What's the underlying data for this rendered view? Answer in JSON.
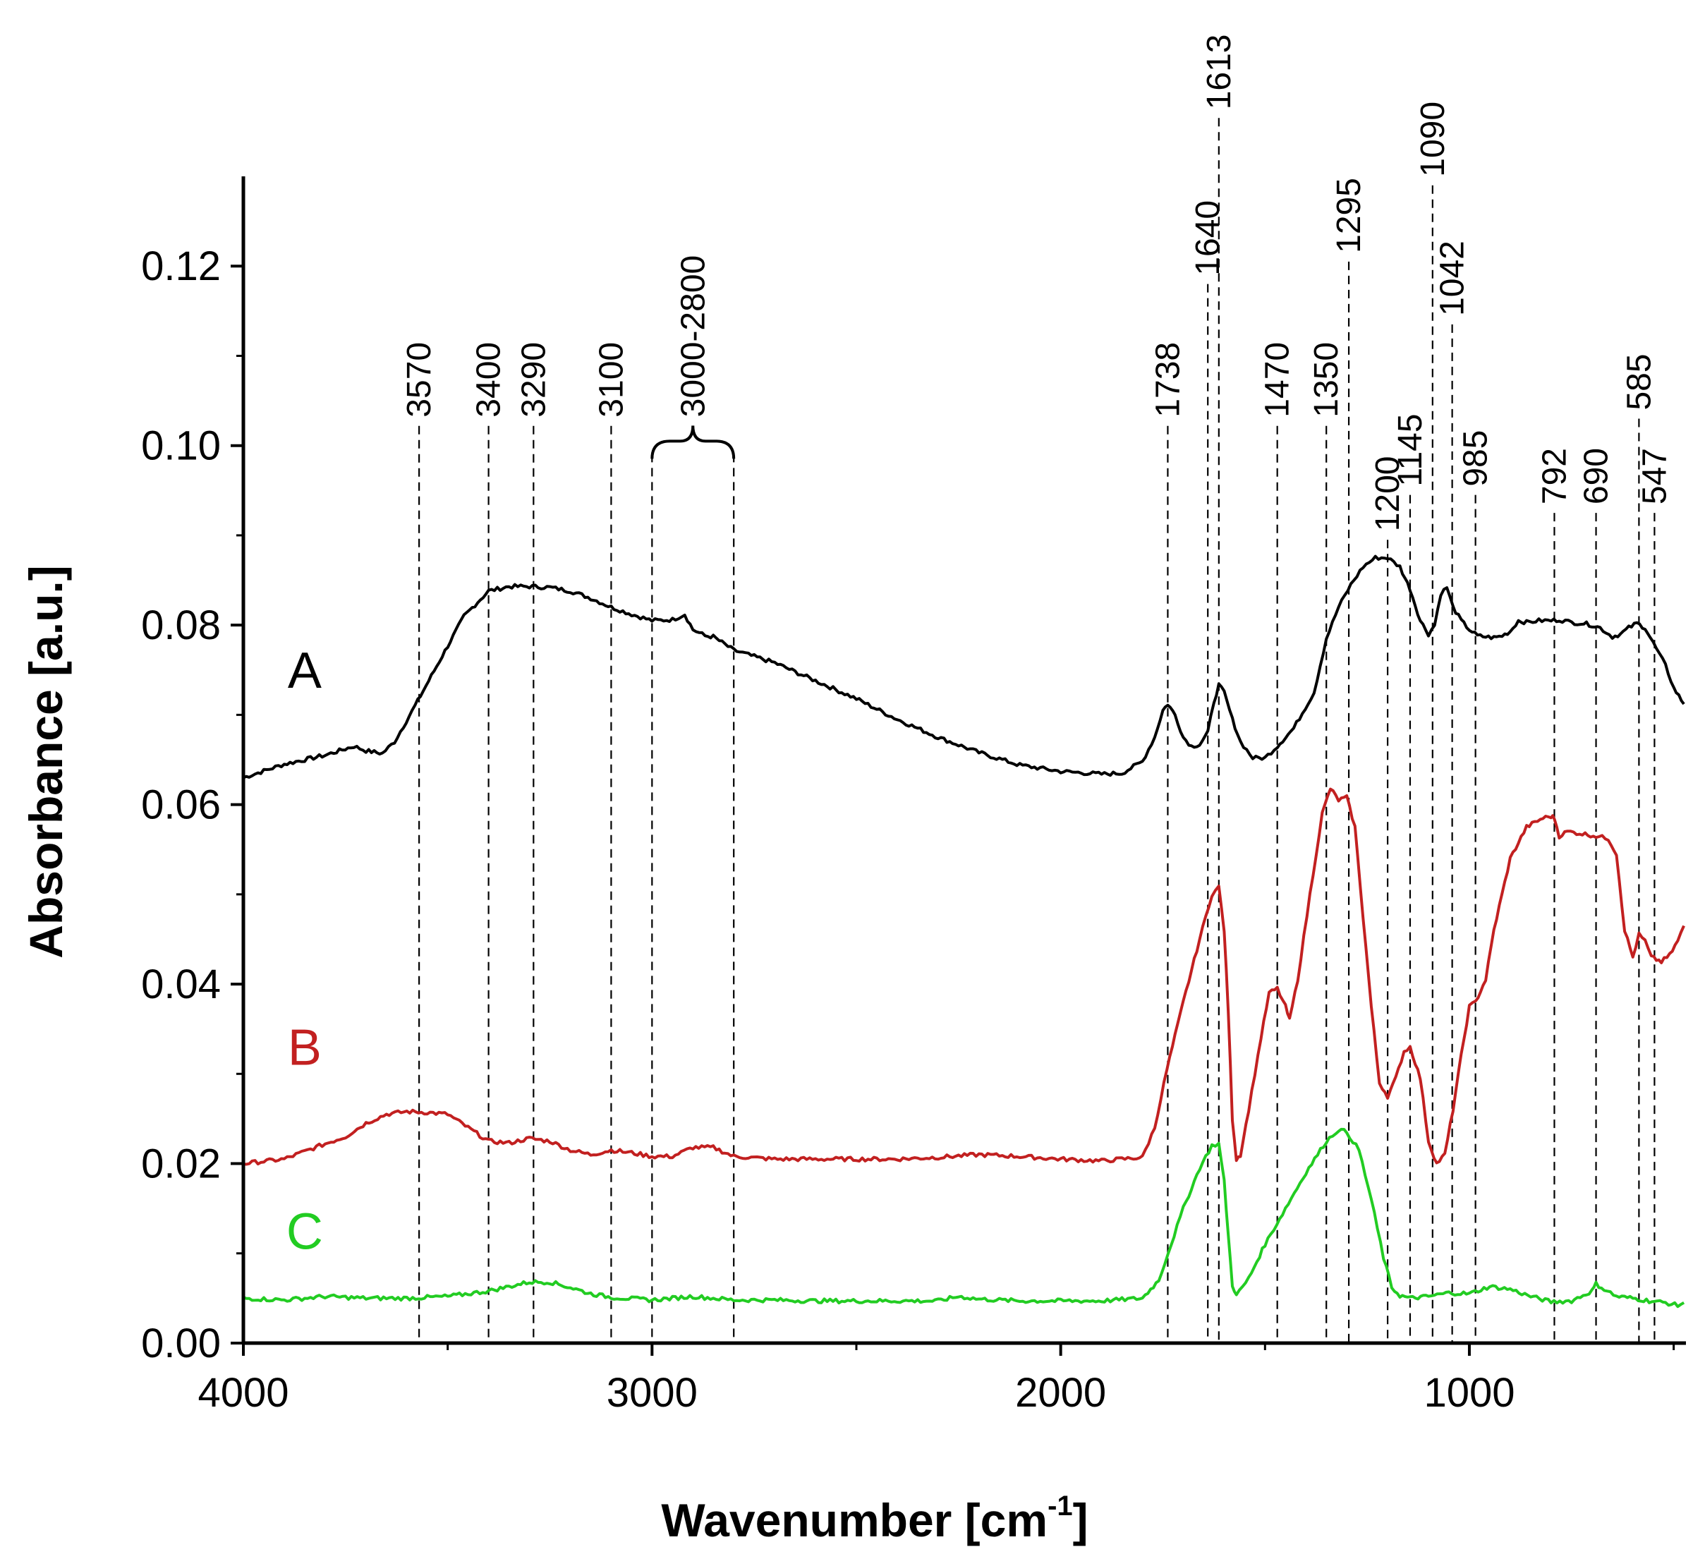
{
  "chart_data": {
    "type": "line",
    "title": "",
    "xlabel": "Wavenumber [cm",
    "xlabel_sup": "-1",
    "xlabel_end": "]",
    "ylabel": "Absorbance [a.u.]",
    "xlim": [
      4000,
      470
    ],
    "ylim": [
      0.0,
      0.13
    ],
    "x_ticks": [
      4000,
      3000,
      2000,
      1000
    ],
    "x_tick_labels": [
      "4000",
      "3000",
      "2000",
      "1000"
    ],
    "y_ticks": [
      0.0,
      0.02,
      0.04,
      0.06,
      0.08,
      0.1,
      0.12
    ],
    "y_tick_labels": [
      "0.00",
      "0.02",
      "0.04",
      "0.06",
      "0.08",
      "0.10",
      "0.12"
    ],
    "series": [
      {
        "name": "A",
        "color": "#000000",
        "label_pos": [
          3850,
          0.073
        ],
        "points": [
          [
            4000,
            0.063
          ],
          [
            3900,
            0.0645
          ],
          [
            3800,
            0.0655
          ],
          [
            3730,
            0.0665
          ],
          [
            3700,
            0.066
          ],
          [
            3660,
            0.0657
          ],
          [
            3630,
            0.067
          ],
          [
            3580,
            0.071
          ],
          [
            3520,
            0.076
          ],
          [
            3460,
            0.081
          ],
          [
            3400,
            0.0838
          ],
          [
            3350,
            0.0843
          ],
          [
            3300,
            0.0843
          ],
          [
            3250,
            0.0842
          ],
          [
            3200,
            0.0838
          ],
          [
            3150,
            0.083
          ],
          [
            3100,
            0.082
          ],
          [
            3050,
            0.0812
          ],
          [
            3000,
            0.0805
          ],
          [
            2950,
            0.0806
          ],
          [
            2920,
            0.0812
          ],
          [
            2900,
            0.0795
          ],
          [
            2870,
            0.0788
          ],
          [
            2850,
            0.0787
          ],
          [
            2800,
            0.0772
          ],
          [
            2700,
            0.0758
          ],
          [
            2600,
            0.0738
          ],
          [
            2500,
            0.0718
          ],
          [
            2400,
            0.0695
          ],
          [
            2300,
            0.0675
          ],
          [
            2200,
            0.0658
          ],
          [
            2100,
            0.0644
          ],
          [
            2000,
            0.0637
          ],
          [
            1900,
            0.0634
          ],
          [
            1850,
            0.0635
          ],
          [
            1800,
            0.0648
          ],
          [
            1770,
            0.0675
          ],
          [
            1750,
            0.0705
          ],
          [
            1738,
            0.0712
          ],
          [
            1720,
            0.07
          ],
          [
            1700,
            0.0675
          ],
          [
            1680,
            0.0665
          ],
          [
            1660,
            0.0667
          ],
          [
            1640,
            0.068
          ],
          [
            1625,
            0.0715
          ],
          [
            1613,
            0.0733
          ],
          [
            1600,
            0.0725
          ],
          [
            1580,
            0.0695
          ],
          [
            1560,
            0.067
          ],
          [
            1530,
            0.0652
          ],
          [
            1500,
            0.0652
          ],
          [
            1470,
            0.0665
          ],
          [
            1430,
            0.0685
          ],
          [
            1380,
            0.0725
          ],
          [
            1350,
            0.0785
          ],
          [
            1320,
            0.082
          ],
          [
            1290,
            0.0845
          ],
          [
            1260,
            0.0865
          ],
          [
            1230,
            0.0875
          ],
          [
            1200,
            0.0875
          ],
          [
            1170,
            0.0865
          ],
          [
            1145,
            0.084
          ],
          [
            1120,
            0.0805
          ],
          [
            1100,
            0.079
          ],
          [
            1085,
            0.08
          ],
          [
            1070,
            0.0835
          ],
          [
            1055,
            0.0842
          ],
          [
            1040,
            0.082
          ],
          [
            1020,
            0.0805
          ],
          [
            1000,
            0.0795
          ],
          [
            980,
            0.0788
          ],
          [
            960,
            0.0787
          ],
          [
            940,
            0.0786
          ],
          [
            920,
            0.0788
          ],
          [
            900,
            0.0793
          ],
          [
            880,
            0.0805
          ],
          [
            860,
            0.0803
          ],
          [
            830,
            0.0805
          ],
          [
            800,
            0.0805
          ],
          [
            780,
            0.0806
          ],
          [
            750,
            0.0803
          ],
          [
            720,
            0.0802
          ],
          [
            700,
            0.08
          ],
          [
            680,
            0.0797
          ],
          [
            650,
            0.0787
          ],
          [
            630,
            0.079
          ],
          [
            610,
            0.0797
          ],
          [
            590,
            0.0802
          ],
          [
            570,
            0.0797
          ],
          [
            550,
            0.078
          ],
          [
            520,
            0.0755
          ],
          [
            500,
            0.073
          ],
          [
            475,
            0.0712
          ]
        ]
      },
      {
        "name": "B",
        "color": "#c22020",
        "label_pos": [
          3850,
          0.031
        ],
        "points": [
          [
            4000,
            0.02
          ],
          [
            3900,
            0.0205
          ],
          [
            3800,
            0.0222
          ],
          [
            3750,
            0.023
          ],
          [
            3700,
            0.0245
          ],
          [
            3650,
            0.0255
          ],
          [
            3600,
            0.0258
          ],
          [
            3550,
            0.0257
          ],
          [
            3500,
            0.0255
          ],
          [
            3450,
            0.024
          ],
          [
            3400,
            0.0225
          ],
          [
            3350,
            0.0223
          ],
          [
            3300,
            0.0228
          ],
          [
            3250,
            0.0225
          ],
          [
            3200,
            0.0215
          ],
          [
            3150,
            0.021
          ],
          [
            3100,
            0.0215
          ],
          [
            3050,
            0.0212
          ],
          [
            3000,
            0.0208
          ],
          [
            2950,
            0.0208
          ],
          [
            2900,
            0.0218
          ],
          [
            2850,
            0.0218
          ],
          [
            2800,
            0.0208
          ],
          [
            2700,
            0.0205
          ],
          [
            2600,
            0.0205
          ],
          [
            2500,
            0.0205
          ],
          [
            2400,
            0.0205
          ],
          [
            2300,
            0.0207
          ],
          [
            2200,
            0.021
          ],
          [
            2100,
            0.0208
          ],
          [
            2000,
            0.0205
          ],
          [
            1900,
            0.0203
          ],
          [
            1800,
            0.0207
          ],
          [
            1770,
            0.024
          ],
          [
            1740,
            0.0305
          ],
          [
            1700,
            0.038
          ],
          [
            1660,
            0.045
          ],
          [
            1630,
            0.05
          ],
          [
            1613,
            0.0508
          ],
          [
            1600,
            0.046
          ],
          [
            1590,
            0.037
          ],
          [
            1580,
            0.025
          ],
          [
            1570,
            0.0205
          ],
          [
            1560,
            0.021
          ],
          [
            1540,
            0.026
          ],
          [
            1510,
            0.034
          ],
          [
            1490,
            0.039
          ],
          [
            1470,
            0.0395
          ],
          [
            1450,
            0.0375
          ],
          [
            1440,
            0.036
          ],
          [
            1420,
            0.0405
          ],
          [
            1390,
            0.05
          ],
          [
            1360,
            0.059
          ],
          [
            1340,
            0.0618
          ],
          [
            1320,
            0.0605
          ],
          [
            1300,
            0.0608
          ],
          [
            1280,
            0.0575
          ],
          [
            1260,
            0.0475
          ],
          [
            1240,
            0.0375
          ],
          [
            1220,
            0.029
          ],
          [
            1200,
            0.0275
          ],
          [
            1180,
            0.0295
          ],
          [
            1160,
            0.0325
          ],
          [
            1145,
            0.033
          ],
          [
            1120,
            0.0295
          ],
          [
            1100,
            0.0225
          ],
          [
            1080,
            0.02
          ],
          [
            1060,
            0.021
          ],
          [
            1040,
            0.026
          ],
          [
            1020,
            0.032
          ],
          [
            1000,
            0.0375
          ],
          [
            985,
            0.038
          ],
          [
            960,
            0.0405
          ],
          [
            940,
            0.046
          ],
          [
            900,
            0.054
          ],
          [
            860,
            0.0575
          ],
          [
            820,
            0.0585
          ],
          [
            800,
            0.0587
          ],
          [
            792,
            0.0585
          ],
          [
            780,
            0.0565
          ],
          [
            760,
            0.057
          ],
          [
            730,
            0.0568
          ],
          [
            690,
            0.0565
          ],
          [
            660,
            0.0562
          ],
          [
            640,
            0.0545
          ],
          [
            620,
            0.046
          ],
          [
            600,
            0.043
          ],
          [
            585,
            0.0455
          ],
          [
            570,
            0.0448
          ],
          [
            555,
            0.043
          ],
          [
            530,
            0.0425
          ],
          [
            510,
            0.0432
          ],
          [
            490,
            0.0448
          ],
          [
            475,
            0.0465
          ]
        ]
      },
      {
        "name": "C",
        "color": "#22cc22",
        "label_pos": [
          3850,
          0.0105
        ],
        "points": [
          [
            4000,
            0.005
          ],
          [
            3900,
            0.0048
          ],
          [
            3800,
            0.0052
          ],
          [
            3700,
            0.005
          ],
          [
            3600,
            0.005
          ],
          [
            3500,
            0.0052
          ],
          [
            3400,
            0.0058
          ],
          [
            3350,
            0.0063
          ],
          [
            3300,
            0.0068
          ],
          [
            3250,
            0.0068
          ],
          [
            3200,
            0.0062
          ],
          [
            3150,
            0.0055
          ],
          [
            3100,
            0.0051
          ],
          [
            3000,
            0.0048
          ],
          [
            2900,
            0.0052
          ],
          [
            2800,
            0.0048
          ],
          [
            2700,
            0.0048
          ],
          [
            2600,
            0.0047
          ],
          [
            2500,
            0.0047
          ],
          [
            2400,
            0.0047
          ],
          [
            2300,
            0.0047
          ],
          [
            2250,
            0.0052
          ],
          [
            2200,
            0.0049
          ],
          [
            2100,
            0.0047
          ],
          [
            2000,
            0.0047
          ],
          [
            1900,
            0.0047
          ],
          [
            1800,
            0.005
          ],
          [
            1760,
            0.007
          ],
          [
            1730,
            0.011
          ],
          [
            1700,
            0.015
          ],
          [
            1660,
            0.0195
          ],
          [
            1630,
            0.022
          ],
          [
            1613,
            0.0222
          ],
          [
            1600,
            0.018
          ],
          [
            1590,
            0.012
          ],
          [
            1580,
            0.0065
          ],
          [
            1570,
            0.0053
          ],
          [
            1540,
            0.0072
          ],
          [
            1500,
            0.011
          ],
          [
            1450,
            0.015
          ],
          [
            1400,
            0.019
          ],
          [
            1350,
            0.0225
          ],
          [
            1320,
            0.0238
          ],
          [
            1300,
            0.0235
          ],
          [
            1270,
            0.0215
          ],
          [
            1240,
            0.016
          ],
          [
            1210,
            0.0095
          ],
          [
            1190,
            0.0062
          ],
          [
            1170,
            0.0053
          ],
          [
            1145,
            0.005
          ],
          [
            1100,
            0.0052
          ],
          [
            1050,
            0.0056
          ],
          [
            1000,
            0.0055
          ],
          [
            950,
            0.0063
          ],
          [
            900,
            0.006
          ],
          [
            850,
            0.0052
          ],
          [
            800,
            0.0046
          ],
          [
            750,
            0.0047
          ],
          [
            700,
            0.0058
          ],
          [
            690,
            0.0066
          ],
          [
            670,
            0.006
          ],
          [
            640,
            0.0052
          ],
          [
            600,
            0.005
          ],
          [
            560,
            0.0047
          ],
          [
            520,
            0.0045
          ],
          [
            490,
            0.0042
          ],
          [
            475,
            0.0045
          ]
        ]
      }
    ],
    "peak_markers": [
      {
        "label": "3570",
        "x": 3570,
        "line_top": 0.1022,
        "tier": 0
      },
      {
        "label": "3400",
        "x": 3400,
        "line_top": 0.1022,
        "tier": 0
      },
      {
        "label": "3290",
        "x": 3290,
        "line_top": 0.1022,
        "tier": 0
      },
      {
        "label": "3100",
        "x": 3100,
        "line_top": 0.1022,
        "tier": 0
      },
      {
        "label": "1738",
        "x": 1738,
        "line_top": 0.1022,
        "tier": 0
      },
      {
        "label": "1640",
        "x": 1640,
        "line_top": 0.118,
        "tier": 1
      },
      {
        "label": "1613",
        "x": 1613,
        "line_top": 0.1365,
        "tier": 2
      },
      {
        "label": "1470",
        "x": 1470,
        "line_top": 0.1022,
        "tier": 0
      },
      {
        "label": "1350",
        "x": 1350,
        "line_top": 0.1022,
        "tier": 0
      },
      {
        "label": "1295",
        "x": 1295,
        "line_top": 0.1205,
        "tier": 1
      },
      {
        "label": "1200",
        "x": 1200,
        "line_top": 0.0895,
        "tier": -1
      },
      {
        "label": "1145",
        "x": 1145,
        "line_top": 0.0945,
        "tier": -1
      },
      {
        "label": "1090",
        "x": 1090,
        "line_top": 0.129,
        "tier": 2
      },
      {
        "label": "1042",
        "x": 1042,
        "line_top": 0.1135,
        "tier": 1
      },
      {
        "label": "985",
        "x": 985,
        "line_top": 0.0945,
        "tier": -1
      },
      {
        "label": "792",
        "x": 792,
        "line_top": 0.0925,
        "tier": -1
      },
      {
        "label": "690",
        "x": 690,
        "line_top": 0.0925,
        "tier": -1
      },
      {
        "label": "585",
        "x": 585,
        "line_top": 0.103,
        "tier": 0
      },
      {
        "label": "547",
        "x": 547,
        "line_top": 0.0925,
        "tier": -1
      }
    ],
    "range_marker": {
      "label": "3000-2800",
      "x_start": 3000,
      "x_end": 2800,
      "line_top": 0.1005
    }
  }
}
